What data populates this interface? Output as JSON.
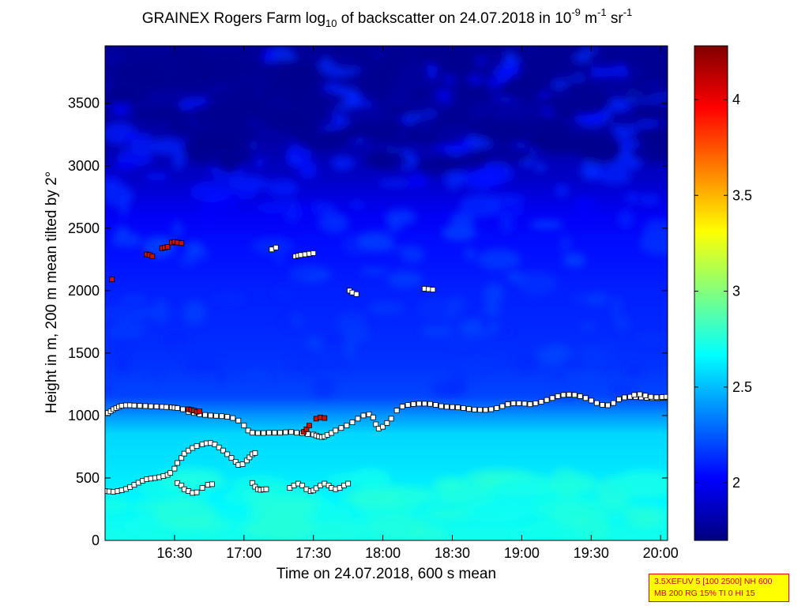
{
  "header": {
    "title_a": "GRAINEX Rogers Farm log",
    "title_sub": "10",
    "title_b": " of backscatter on 24.07.2018 in 10",
    "title_sup1": "-9",
    "title_c": " m",
    "title_sup2": "-1",
    "title_d": " sr",
    "title_sup3": "-1"
  },
  "axes": {
    "xlabel": "Time on 24.07.2018, 600 s mean",
    "ylabel": "Height in m, 200 m mean tilted by 2°"
  },
  "stamp": {
    "line1": "3.5XEFUV 5 [100 2500] NH 600",
    "line2": "MB 200 RG 15% TI 0 HI 15"
  },
  "chart_data": {
    "type": "heatmap",
    "x_range_hours": [
      16.0,
      20.05
    ],
    "x_ticks": [
      {
        "value": 16.5,
        "label": "16:30"
      },
      {
        "value": 17.0,
        "label": "17:00"
      },
      {
        "value": 17.5,
        "label": "17:30"
      },
      {
        "value": 18.0,
        "label": "18:00"
      },
      {
        "value": 18.5,
        "label": "18:30"
      },
      {
        "value": 19.0,
        "label": "19:00"
      },
      {
        "value": 19.5,
        "label": "19:30"
      },
      {
        "value": 20.0,
        "label": "20:00"
      }
    ],
    "ylim": [
      0,
      3960
    ],
    "y_ticks": [
      {
        "value": 0,
        "label": "0"
      },
      {
        "value": 500,
        "label": "500"
      },
      {
        "value": 1000,
        "label": "1000"
      },
      {
        "value": 1500,
        "label": "1500"
      },
      {
        "value": 2000,
        "label": "2000"
      },
      {
        "value": 2500,
        "label": "2500"
      },
      {
        "value": 3000,
        "label": "3000"
      },
      {
        "value": 3500,
        "label": "3500"
      }
    ],
    "colorbar": {
      "range": [
        1.7,
        4.28
      ],
      "ticks": [
        {
          "value": 2,
          "label": "2"
        },
        {
          "value": 2.5,
          "label": "2.5"
        },
        {
          "value": 3,
          "label": "3"
        },
        {
          "value": 3.5,
          "label": "3.5"
        },
        {
          "value": 4,
          "label": "4"
        }
      ],
      "colormap": "jet"
    },
    "profile": [
      {
        "h": 0,
        "v": 2.72
      },
      {
        "h": 300,
        "v": 2.65
      },
      {
        "h": 600,
        "v": 2.6
      },
      {
        "h": 850,
        "v": 2.57
      },
      {
        "h": 1000,
        "v": 2.4
      },
      {
        "h": 1150,
        "v": 2.2
      },
      {
        "h": 1400,
        "v": 2.15
      },
      {
        "h": 1700,
        "v": 2.12
      },
      {
        "h": 2000,
        "v": 2.1
      },
      {
        "h": 2300,
        "v": 2.06
      },
      {
        "h": 2600,
        "v": 2.0
      },
      {
        "h": 2900,
        "v": 1.88
      },
      {
        "h": 3200,
        "v": 1.8
      },
      {
        "h": 3960,
        "v": 1.76
      }
    ],
    "series": [
      {
        "marker": "white-square",
        "points": [
          [
            16.02,
            1020
          ],
          [
            16.04,
            1035
          ],
          [
            16.06,
            1050
          ],
          [
            16.08,
            1060
          ],
          [
            16.1,
            1070
          ],
          [
            16.12,
            1078
          ],
          [
            16.15,
            1082
          ],
          [
            16.18,
            1082
          ],
          [
            16.21,
            1080
          ],
          [
            16.25,
            1078
          ],
          [
            16.29,
            1076
          ],
          [
            16.33,
            1074
          ],
          [
            16.37,
            1072
          ],
          [
            16.41,
            1070
          ],
          [
            16.44,
            1068
          ],
          [
            16.48,
            1065
          ],
          [
            16.5,
            1063
          ],
          [
            16.52,
            1060
          ],
          [
            16.56,
            1050
          ],
          [
            16.6,
            1030
          ],
          [
            16.64,
            1020
          ],
          [
            16.68,
            1010
          ],
          [
            16.72,
            1005
          ],
          [
            16.76,
            1000
          ],
          [
            16.8,
            998
          ],
          [
            16.84,
            995
          ],
          [
            16.88,
            990
          ],
          [
            16.92,
            980
          ],
          [
            16.96,
            960
          ],
          [
            17.0,
            920
          ],
          [
            17.03,
            880
          ],
          [
            17.06,
            862
          ],
          [
            17.1,
            860
          ],
          [
            17.14,
            860
          ],
          [
            17.18,
            862
          ],
          [
            17.22,
            862
          ],
          [
            17.26,
            862
          ],
          [
            17.3,
            866
          ],
          [
            17.34,
            868
          ],
          [
            17.38,
            862
          ],
          [
            17.42,
            858
          ],
          [
            17.46,
            852
          ],
          [
            17.5,
            848
          ],
          [
            17.52,
            840
          ],
          [
            17.54,
            832
          ],
          [
            17.56,
            828
          ],
          [
            17.58,
            832
          ],
          [
            17.6,
            845
          ],
          [
            17.63,
            860
          ],
          [
            17.66,
            880
          ],
          [
            17.7,
            900
          ],
          [
            17.74,
            920
          ],
          [
            17.78,
            945
          ],
          [
            17.82,
            975
          ],
          [
            17.86,
            1000
          ],
          [
            17.9,
            1010
          ],
          [
            17.93,
            985
          ],
          [
            17.95,
            930
          ],
          [
            17.97,
            895
          ],
          [
            18.0,
            910
          ],
          [
            18.03,
            940
          ],
          [
            18.06,
            975
          ],
          [
            18.1,
            1040
          ],
          [
            18.14,
            1072
          ],
          [
            18.18,
            1085
          ],
          [
            18.22,
            1092
          ],
          [
            18.26,
            1095
          ],
          [
            18.3,
            1095
          ],
          [
            18.34,
            1093
          ],
          [
            18.38,
            1085
          ],
          [
            18.42,
            1075
          ],
          [
            18.46,
            1070
          ],
          [
            18.5,
            1068
          ],
          [
            18.54,
            1065
          ],
          [
            18.58,
            1060
          ],
          [
            18.62,
            1052
          ],
          [
            18.66,
            1048
          ],
          [
            18.7,
            1045
          ],
          [
            18.74,
            1045
          ],
          [
            18.78,
            1050
          ],
          [
            18.82,
            1060
          ],
          [
            18.86,
            1075
          ],
          [
            18.9,
            1090
          ],
          [
            18.94,
            1098
          ],
          [
            18.98,
            1098
          ],
          [
            19.02,
            1095
          ],
          [
            19.06,
            1090
          ],
          [
            19.1,
            1098
          ],
          [
            19.14,
            1110
          ],
          [
            19.18,
            1125
          ],
          [
            19.22,
            1140
          ],
          [
            19.26,
            1155
          ],
          [
            19.3,
            1165
          ],
          [
            19.34,
            1168
          ],
          [
            19.38,
            1165
          ],
          [
            19.42,
            1155
          ],
          [
            19.46,
            1140
          ],
          [
            19.5,
            1120
          ],
          [
            19.54,
            1100
          ],
          [
            19.58,
            1085
          ],
          [
            19.62,
            1082
          ],
          [
            19.66,
            1100
          ],
          [
            19.7,
            1130
          ],
          [
            19.74,
            1145
          ],
          [
            19.78,
            1150
          ],
          [
            19.82,
            1148
          ],
          [
            19.86,
            1145
          ],
          [
            19.9,
            1142
          ],
          [
            19.94,
            1140
          ],
          [
            19.98,
            1140
          ],
          [
            20.02,
            1142
          ],
          [
            20.05,
            1145
          ],
          [
            19.81,
            1165
          ],
          [
            19.85,
            1170
          ],
          [
            19.89,
            1160
          ],
          [
            19.93,
            1150
          ],
          [
            19.97,
            1146
          ],
          [
            20.01,
            1148
          ],
          [
            20.04,
            1150
          ],
          [
            16.0,
            395
          ],
          [
            16.03,
            392
          ],
          [
            16.06,
            390
          ],
          [
            16.09,
            395
          ],
          [
            16.12,
            402
          ],
          [
            16.15,
            412
          ],
          [
            16.18,
            428
          ],
          [
            16.21,
            445
          ],
          [
            16.24,
            462
          ],
          [
            16.27,
            478
          ],
          [
            16.3,
            490
          ],
          [
            16.33,
            495
          ],
          [
            16.36,
            500
          ],
          [
            16.39,
            506
          ],
          [
            16.42,
            515
          ],
          [
            16.45,
            525
          ],
          [
            16.47,
            540
          ],
          [
            16.5,
            575
          ],
          [
            16.52,
            620
          ],
          [
            16.55,
            660
          ],
          [
            16.57,
            695
          ],
          [
            16.6,
            720
          ],
          [
            16.63,
            740
          ],
          [
            16.66,
            755
          ],
          [
            16.7,
            770
          ],
          [
            16.73,
            778
          ],
          [
            16.76,
            780
          ],
          [
            16.79,
            768
          ],
          [
            16.82,
            745
          ],
          [
            16.85,
            720
          ],
          [
            16.88,
            690
          ],
          [
            16.91,
            660
          ],
          [
            16.94,
            630
          ],
          [
            16.96,
            605
          ],
          [
            16.99,
            610
          ],
          [
            17.02,
            640
          ],
          [
            17.04,
            665
          ],
          [
            17.06,
            690
          ],
          [
            17.08,
            700
          ],
          [
            16.52,
            460
          ],
          [
            16.55,
            440
          ],
          [
            16.57,
            410
          ],
          [
            16.6,
            395
          ],
          [
            16.63,
            380
          ],
          [
            16.66,
            385
          ],
          [
            16.7,
            420
          ],
          [
            16.74,
            445
          ],
          [
            16.77,
            450
          ],
          [
            17.06,
            460
          ],
          [
            17.08,
            430
          ],
          [
            17.1,
            410
          ],
          [
            17.12,
            405
          ],
          [
            17.14,
            408
          ],
          [
            17.16,
            410
          ],
          [
            17.33,
            420
          ],
          [
            17.36,
            440
          ],
          [
            17.39,
            455
          ],
          [
            17.42,
            440
          ],
          [
            17.45,
            410
          ],
          [
            17.48,
            395
          ],
          [
            17.5,
            400
          ],
          [
            17.52,
            418
          ],
          [
            17.55,
            440
          ],
          [
            17.58,
            455
          ],
          [
            17.61,
            440
          ],
          [
            17.63,
            420
          ],
          [
            17.66,
            410
          ],
          [
            17.69,
            420
          ],
          [
            17.72,
            440
          ],
          [
            17.75,
            455
          ],
          [
            17.2,
            2330
          ],
          [
            17.23,
            2345
          ],
          [
            17.76,
            2000
          ],
          [
            17.78,
            1985
          ],
          [
            17.81,
            1972
          ],
          [
            18.3,
            2015
          ],
          [
            18.33,
            2012
          ],
          [
            18.36,
            2008
          ],
          [
            17.37,
            2275
          ],
          [
            17.39,
            2280
          ],
          [
            17.41,
            2285
          ],
          [
            17.44,
            2290
          ],
          [
            17.47,
            2295
          ],
          [
            17.5,
            2300
          ]
        ]
      },
      {
        "marker": "red-square",
        "points": [
          [
            16.05,
            2090
          ],
          [
            16.3,
            2290
          ],
          [
            16.32,
            2285
          ],
          [
            16.34,
            2275
          ],
          [
            16.41,
            2340
          ],
          [
            16.43,
            2345
          ],
          [
            16.45,
            2350
          ],
          [
            16.48,
            2385
          ],
          [
            16.5,
            2390
          ],
          [
            16.52,
            2385
          ],
          [
            16.55,
            2380
          ],
          [
            16.6,
            1050
          ],
          [
            16.62,
            1045
          ],
          [
            16.64,
            1040
          ],
          [
            16.66,
            1030
          ],
          [
            16.68,
            1035
          ],
          [
            17.43,
            870
          ],
          [
            17.45,
            890
          ],
          [
            17.47,
            920
          ],
          [
            17.52,
            975
          ],
          [
            17.55,
            985
          ],
          [
            17.58,
            980
          ]
        ]
      }
    ]
  }
}
